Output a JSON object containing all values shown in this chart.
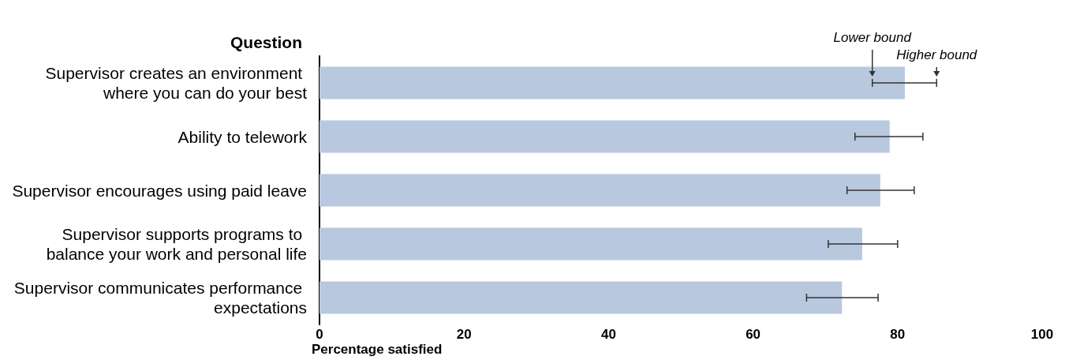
{
  "chart_data": {
    "type": "bar",
    "orientation": "horizontal",
    "ylabel": "Question",
    "xlabel": "Percentage satisfied",
    "categories": [
      "Supervisor creates an environment where you can do your best",
      "Ability to telework",
      "Supervisor encourages using paid leave",
      "Supervisor supports programs to balance your work and personal life",
      "Supervisor communicates performance expectations"
    ],
    "values": [
      81.0,
      78.9,
      77.6,
      75.1,
      72.3
    ],
    "errors": [
      [
        76.5,
        85.4
      ],
      [
        74.1,
        83.5
      ],
      [
        73.0,
        82.3
      ],
      [
        70.4,
        80.0
      ],
      [
        67.4,
        77.3
      ]
    ],
    "color": "#b8c8de",
    "xlim": [
      0,
      100
    ],
    "xticks": [
      0,
      20,
      40,
      60,
      80,
      100
    ],
    "grid": false,
    "annotations": [
      {
        "text": "Lower bound",
        "x": 76.5,
        "y": "Supervisor creates an environment where you can do your best"
      },
      {
        "text": "Higher bound",
        "x": 85.4,
        "y": "Supervisor creates an environment where you can do your best"
      }
    ]
  }
}
